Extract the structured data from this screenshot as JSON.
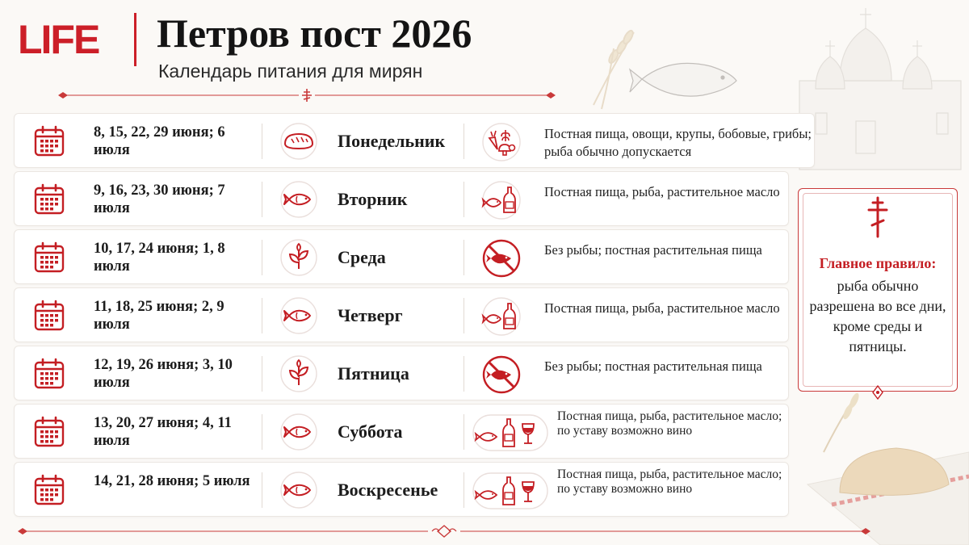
{
  "brand": {
    "logo": "LIFE",
    "accent": "#cc1f28"
  },
  "header": {
    "title": "Петров пост 2026",
    "subtitle": "Календарь питания для мирян"
  },
  "rows": [
    {
      "dates": "8, 15, 22, 29 июня; 6 июля",
      "day": "Понедельник",
      "day_icon": "bread-icon",
      "food_icon": "vegetables-icon",
      "food": "Постная пища, овощи, крупы, бобовые, грибы; рыба обычно допускается"
    },
    {
      "dates": "9, 16, 23, 30 июня; 7 июля",
      "day": "Вторник",
      "day_icon": "fish-icon",
      "food_icon": "fish-oil-icon",
      "food": "Постная пища, рыба, растительное масло"
    },
    {
      "dates": "10, 17, 24 июня; 1, 8 июля",
      "day": "Среда",
      "day_icon": "sprout-icon",
      "food_icon": "no-fish-icon",
      "food": "Без рыбы; постная растительная пища"
    },
    {
      "dates": "11, 18, 25 июня; 2, 9 июля",
      "day": "Четверг",
      "day_icon": "fish-icon",
      "food_icon": "fish-oil-icon",
      "food": "Постная пища, рыба, растительное масло"
    },
    {
      "dates": "12, 19, 26 июня; 3, 10 июля",
      "day": "Пятница",
      "day_icon": "sprout-icon",
      "food_icon": "no-fish-icon",
      "food": "Без рыбы; постная растительная пища"
    },
    {
      "dates": "13, 20, 27 июня; 4, 11 июля",
      "day": "Суббота",
      "day_icon": "fish-icon",
      "food_icon": "fish-oil-wine-icon",
      "food": "Постная пища, рыба, растительное масло; по уставу возможно вино"
    },
    {
      "dates": "14, 21, 28 июня; 5 июля",
      "day": "Воскресенье",
      "day_icon": "fish-icon",
      "food_icon": "fish-oil-wine-icon",
      "food": "Постная пища, рыба, растительное масло; по уставу возможно вино"
    }
  ],
  "rule": {
    "heading": "Главное правило:",
    "text": "рыба обычно разрешена во все дни, кроме среды и пятницы."
  }
}
